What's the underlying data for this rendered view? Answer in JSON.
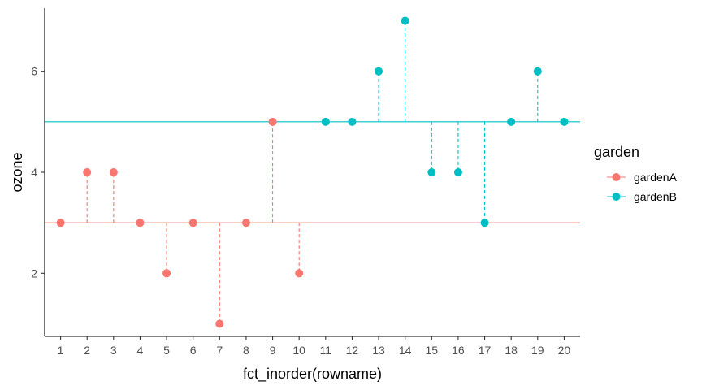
{
  "chart_data": {
    "type": "scatter",
    "xlabel": "fct_inorder(rowname)",
    "ylabel": "ozone",
    "categories": [
      "1",
      "2",
      "3",
      "4",
      "5",
      "6",
      "7",
      "8",
      "9",
      "10",
      "11",
      "12",
      "13",
      "14",
      "15",
      "16",
      "17",
      "18",
      "19",
      "20"
    ],
    "ylim": [
      0.75,
      7.25
    ],
    "yticks": [
      2,
      4,
      6
    ],
    "grid": false,
    "legend": {
      "title": "garden",
      "placement": "right"
    },
    "series": [
      {
        "name": "gardenA",
        "color": "#F8766D",
        "mean": 3,
        "x": [
          "1",
          "2",
          "3",
          "4",
          "5",
          "6",
          "7",
          "8",
          "9",
          "10"
        ],
        "values": [
          3,
          4,
          4,
          3,
          2,
          3,
          1,
          3,
          5,
          2
        ]
      },
      {
        "name": "gardenB",
        "color": "#00BFC4",
        "mean": 5,
        "x": [
          "11",
          "12",
          "13",
          "14",
          "15",
          "16",
          "17",
          "18",
          "19",
          "20"
        ],
        "values": [
          5,
          5,
          6,
          7,
          4,
          4,
          3,
          5,
          6,
          5
        ]
      }
    ]
  }
}
